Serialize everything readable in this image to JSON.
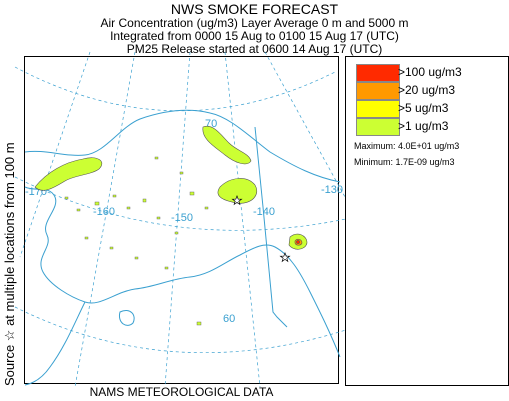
{
  "header": {
    "title": "NWS SMOKE FORECAST",
    "line2": "Air Concentration (ug/m3) Layer Average    0 m and  5000 m",
    "line3": "Integrated from 0000 15 Aug to 0100 15 Aug 17 (UTC)",
    "line4": "PM25 Release started at 0600 14 Aug 17 (UTC)"
  },
  "side_label": "Source ☆ at multiple locations    from  100 m",
  "footer": "NAMS METEOROLOGICAL DATA",
  "legend": {
    "items": [
      {
        "label": ">100 ug/m3",
        "color": "#ff2a00"
      },
      {
        "label": ">20 ug/m3",
        "color": "#ff9900"
      },
      {
        "label": ">5 ug/m3",
        "color": "#ffff00"
      },
      {
        "label": ">1 ug/m3",
        "color": "#ccff33"
      }
    ],
    "maximum": "Maximum: 4.0E+01 ug/m3",
    "minimum": "Minimum: 1.7E-09 ug/m3"
  },
  "map": {
    "longitude_labels": [
      "-170",
      "-160",
      "-150",
      "-140",
      "-130"
    ],
    "latitude_labels": [
      "70",
      "60"
    ],
    "colors": {
      "coast": "#3aa0d0",
      "grid": "#3aa0d0",
      "border": "#3aa0d0",
      "outline": "#555555"
    }
  }
}
